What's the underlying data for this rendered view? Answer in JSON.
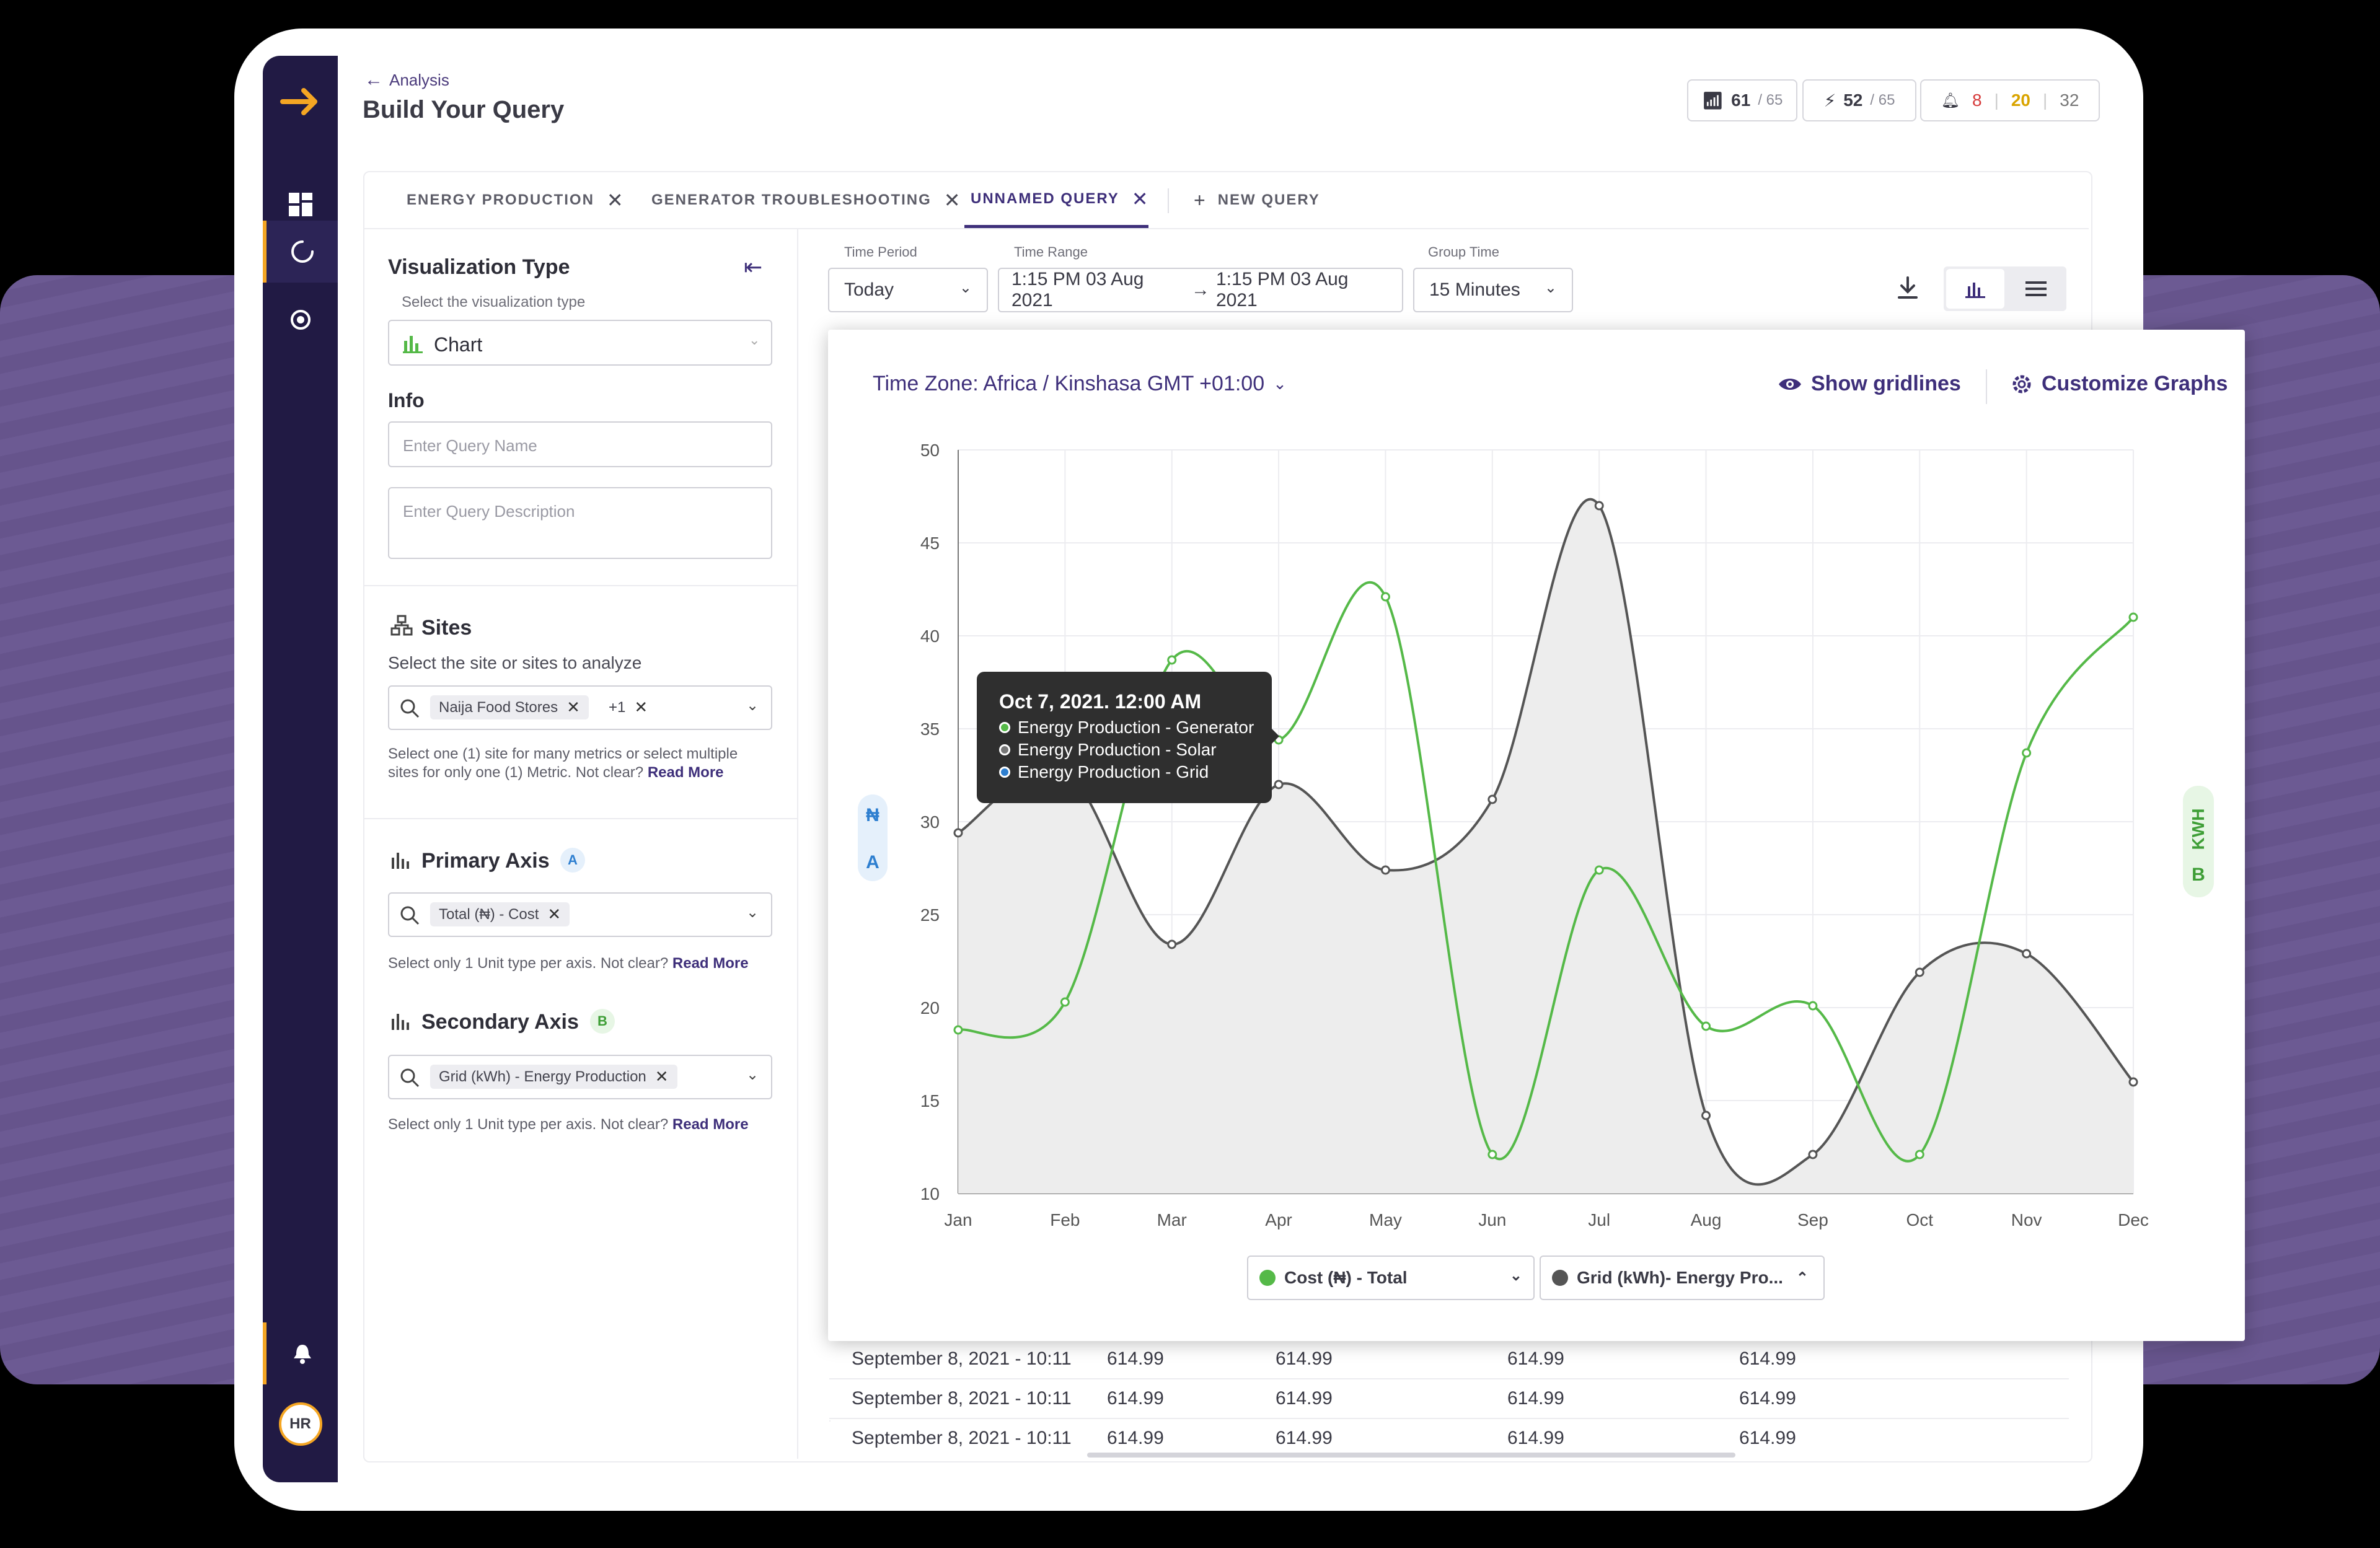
{
  "header": {
    "back_label": "Analysis",
    "title": "Build Your Query",
    "signal": {
      "value": "61",
      "total": "/ 65"
    },
    "power": {
      "value": "52",
      "total": "/ 65"
    },
    "alerts": {
      "red": "8",
      "yellow": "20",
      "grey": "32"
    }
  },
  "tabs": [
    {
      "label": "ENERGY PRODUCTION"
    },
    {
      "label": "GENERATOR TROUBLESHOOTING"
    },
    {
      "label": "UNNAMED QUERY"
    },
    {
      "label": "NEW QUERY"
    }
  ],
  "left": {
    "viz_title": "Visualization Type",
    "viz_sub": "Select the visualization type",
    "viz_value": "Chart",
    "info_title": "Info",
    "query_name_ph": "Enter Query Name",
    "query_desc_ph": "Enter Query Description",
    "sites_title": "Sites",
    "sites_sub": "Select the site or sites to analyze",
    "sites_chip": "Naija Food Stores",
    "sites_more": "+1",
    "sites_help": "Select one (1) site for many metrics or select multiple sites for only one (1) Metric. Not clear?",
    "read_more": "Read More",
    "primary_title": "Primary Axis",
    "primary_badge": "A",
    "primary_chip": "Total (₦) - Cost",
    "axis_help": "Select only 1 Unit type per axis. Not clear?",
    "secondary_title": "Secondary Axis",
    "secondary_badge": "B",
    "secondary_chip": "Grid (kWh) - Energy Production"
  },
  "controls": {
    "period_label": "Time Period",
    "period_value": "Today",
    "range_label": "Time Range",
    "range_start": "1:15 PM 03 Aug 2021",
    "range_end": "1:15 PM 03 Aug 2021",
    "group_label": "Group Time",
    "group_value": "15 Minutes"
  },
  "card": {
    "timezone": "Time Zone: Africa / Kinshasa GMT +01:00",
    "gridlines": "Show gridlines",
    "customize": "Customize Graphs",
    "axis_a_symbol": "₦",
    "axis_a_badge": "A",
    "axis_b_unit": "KWH",
    "axis_b_badge": "B",
    "legend_green": "Cost (₦) - Total",
    "legend_grey": "Grid (kWh)- Energy Pro...",
    "colors": {
      "green": "#55b948",
      "grey": "#555555",
      "accent": "#3e2f7a"
    }
  },
  "tooltip": {
    "title": "Oct 7, 2021. 12:00 AM",
    "items": [
      "Energy Production - Generator",
      "Energy Production - Solar",
      "Energy Production - Grid"
    ]
  },
  "table": {
    "rows": [
      [
        "September 8, 2021 - 10:11",
        "614.99",
        "614.99",
        "614.99",
        "614.99"
      ],
      [
        "September 8, 2021 - 10:11",
        "614.99",
        "614.99",
        "614.99",
        "614.99"
      ],
      [
        "September 8, 2021 - 10:11",
        "614.99",
        "614.99",
        "614.99",
        "614.99"
      ]
    ]
  },
  "user": {
    "initials": "HR"
  },
  "chart_data": {
    "type": "line",
    "categories": [
      "Jan",
      "Feb",
      "Mar",
      "Apr",
      "May",
      "Jun",
      "Jul",
      "Aug",
      "Sep",
      "Oct",
      "Nov",
      "Dec"
    ],
    "ylim": [
      10,
      50
    ],
    "yticks": [
      10,
      15,
      20,
      25,
      30,
      35,
      40,
      45,
      50
    ],
    "grid": true,
    "series": [
      {
        "name": "Cost (₦) - Total",
        "color": "#55b948",
        "values": [
          18.8,
          20.3,
          38.7,
          34.4,
          42.1,
          12.1,
          27.4,
          19.0,
          20.1,
          12.1,
          33.7,
          41.0
        ]
      },
      {
        "name": "Grid (kWh)- Energy Pro...",
        "color": "#555555",
        "values": [
          29.4,
          32.7,
          23.4,
          32.0,
          27.4,
          31.2,
          47.0,
          14.2,
          12.1,
          21.9,
          22.9,
          16.0
        ],
        "area": true
      }
    ]
  }
}
